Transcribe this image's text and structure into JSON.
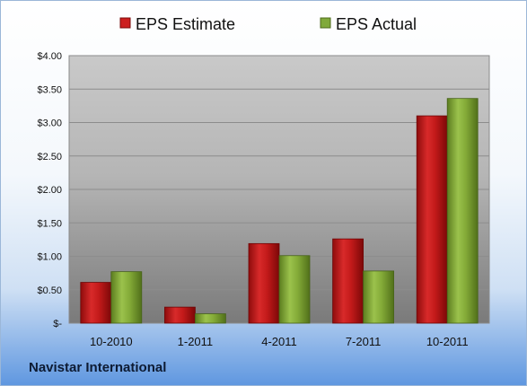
{
  "footer_text": "Navistar International",
  "colors": {
    "estimate": "#d01f1f",
    "actual": "#7fa832"
  },
  "chart_data": {
    "type": "bar",
    "categories": [
      "10-2010",
      "1-2011",
      "4-2011",
      "7-2011",
      "10-2011"
    ],
    "series": [
      {
        "name": "EPS Estimate",
        "values": [
          0.61,
          0.24,
          1.19,
          1.26,
          3.1
        ]
      },
      {
        "name": "EPS Actual",
        "values": [
          0.77,
          0.14,
          1.01,
          0.78,
          3.36
        ]
      }
    ],
    "title": "",
    "xlabel": "",
    "ylabel": "",
    "ylim": [
      0,
      4
    ],
    "yticks": [
      0,
      0.5,
      1.0,
      1.5,
      2.0,
      2.5,
      3.0,
      3.5,
      4.0
    ],
    "ytick_labels": [
      "$-",
      "$0.50",
      "$1.00",
      "$1.50",
      "$2.00",
      "$2.50",
      "$3.00",
      "$3.50",
      "$4.00"
    ],
    "grid": true,
    "legend_position": "top"
  }
}
